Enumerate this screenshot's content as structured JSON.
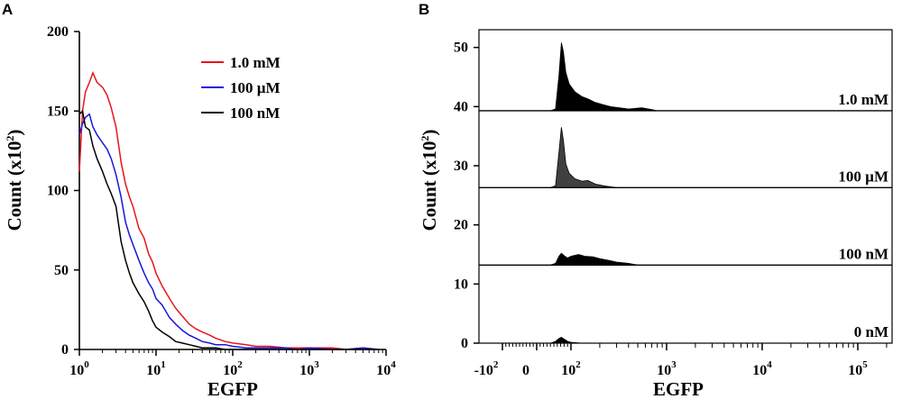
{
  "chart_data": [
    {
      "panel": "A",
      "type": "line",
      "xlabel": "EGFP",
      "ylabel": "Count (x10",
      "ylabel_sup": "2",
      "ylabel_close": ")",
      "xscale": "log",
      "xlim": [
        1,
        10000
      ],
      "ylim": [
        0,
        200
      ],
      "yticks": [
        "0",
        "50",
        "100",
        "150",
        "200"
      ],
      "xticks": [
        {
          "base": "10",
          "exp": "0"
        },
        {
          "base": "10",
          "exp": "1"
        },
        {
          "base": "10",
          "exp": "2"
        },
        {
          "base": "10",
          "exp": "3"
        },
        {
          "base": "10",
          "exp": "4"
        }
      ],
      "legend_position": "top-right",
      "grid": false,
      "series": [
        {
          "name": "1.0 mM",
          "color": "#e8141c",
          "x": [
            1,
            1.1,
            1.2,
            1.35,
            1.5,
            1.7,
            2,
            2.3,
            2.6,
            3,
            3.5,
            4,
            4.5,
            5,
            6,
            7,
            8,
            9,
            10,
            12,
            15,
            18,
            22,
            27,
            33,
            40,
            50,
            60,
            80,
            100,
            150,
            200,
            300,
            500,
            700,
            1000,
            2000,
            3000,
            5000,
            8000
          ],
          "y": [
            112,
            150,
            162,
            168,
            174,
            168,
            165,
            160,
            152,
            140,
            118,
            104,
            96,
            90,
            76,
            70,
            60,
            55,
            48,
            40,
            32,
            26,
            21,
            16,
            13,
            11,
            9,
            7,
            5,
            4,
            3,
            2,
            2,
            1,
            1,
            1,
            1,
            0,
            1,
            0
          ]
        },
        {
          "name": "100 µM",
          "color": "#1a16d8",
          "x": [
            1,
            1.1,
            1.2,
            1.35,
            1.5,
            1.7,
            2,
            2.3,
            2.6,
            3,
            3.5,
            4,
            4.5,
            5,
            6,
            7,
            8,
            9,
            10,
            12,
            15,
            18,
            22,
            27,
            33,
            40,
            50,
            60,
            80,
            100,
            150,
            200,
            300,
            500,
            700,
            1000,
            2000,
            3000,
            5000,
            8000
          ],
          "y": [
            135,
            142,
            146,
            148,
            140,
            135,
            130,
            126,
            120,
            110,
            96,
            80,
            72,
            66,
            56,
            48,
            42,
            38,
            32,
            28,
            20,
            16,
            12,
            9,
            7,
            5,
            4,
            3,
            3,
            2,
            1,
            1,
            1,
            1,
            0,
            1,
            0,
            0,
            1,
            0
          ]
        },
        {
          "name": "100 nM",
          "color": "#000000",
          "x": [
            1,
            1.1,
            1.2,
            1.35,
            1.5,
            1.7,
            2,
            2.3,
            2.6,
            3,
            3.5,
            4,
            4.5,
            5,
            6,
            7,
            8,
            9,
            10,
            12,
            15,
            18,
            22,
            27,
            33,
            40,
            50,
            60,
            80,
            100,
            150,
            200,
            300,
            500,
            700,
            1000,
            2000,
            3000,
            5000,
            8000
          ],
          "y": [
            148,
            150,
            140,
            138,
            128,
            120,
            112,
            104,
            98,
            90,
            68,
            56,
            48,
            42,
            35,
            30,
            24,
            18,
            14,
            11,
            8,
            5,
            4,
            3,
            2,
            1,
            1,
            1,
            0,
            0,
            0,
            0,
            0,
            0,
            0,
            0,
            0,
            0,
            0,
            0
          ]
        }
      ]
    },
    {
      "panel": "B",
      "type": "area",
      "xlabel": "EGFP",
      "ylabel": "Count (x10",
      "ylabel_sup": "2",
      "ylabel_close": ")",
      "xscale": "biexponential",
      "xlim": [
        -200,
        180000
      ],
      "ylim": [
        0,
        53
      ],
      "yticks": [
        "0",
        "10",
        "20",
        "30",
        "40",
        "50"
      ],
      "xticks": [
        {
          "base": "-10",
          "exp": "2"
        },
        {
          "base": "0",
          "exp": ""
        },
        {
          "base": "10",
          "exp": "2"
        },
        {
          "base": "10",
          "exp": "3"
        },
        {
          "base": "10",
          "exp": "4"
        },
        {
          "base": "10",
          "exp": "5"
        }
      ],
      "grid": false,
      "rows": [
        {
          "name": "1.0 mM",
          "baseline": 39.3,
          "color": "#000000",
          "x": [
            40,
            55,
            65,
            72,
            78,
            85,
            95,
            110,
            130,
            150,
            180,
            220,
            260,
            320,
            400,
            550,
            700,
            800
          ],
          "y": [
            0,
            0.3,
            6,
            11.5,
            10,
            6.5,
            4.5,
            3.2,
            2.4,
            2,
            1.4,
            1,
            0.7,
            0.5,
            0.3,
            0.5,
            0.2,
            0
          ]
        },
        {
          "name": "100 µM",
          "baseline": 26.3,
          "color": "#404040",
          "x": [
            40,
            55,
            65,
            72,
            78,
            85,
            95,
            110,
            130,
            150,
            180,
            220,
            300
          ],
          "y": [
            0,
            0.3,
            6,
            10.2,
            8,
            4,
            2.4,
            1.5,
            1.1,
            1.2,
            0.6,
            0.3,
            0
          ]
        },
        {
          "name": "100 nM",
          "baseline": 13.2,
          "color": "#000000",
          "x": [
            40,
            55,
            65,
            72,
            80,
            90,
            100,
            120,
            140,
            170,
            200,
            250,
            300,
            400,
            500
          ],
          "y": [
            0,
            0.3,
            1.5,
            2,
            1.6,
            1.2,
            1.5,
            1.8,
            1.5,
            1.4,
            1.1,
            0.8,
            0.5,
            0.3,
            0
          ]
        },
        {
          "name": "0 nM",
          "baseline": 0,
          "color": "#000000",
          "x": [
            40,
            55,
            65,
            72,
            80,
            90,
            100,
            130
          ],
          "y": [
            0,
            0.3,
            0.8,
            1,
            0.7,
            0.3,
            0.15,
            0
          ]
        }
      ]
    }
  ]
}
